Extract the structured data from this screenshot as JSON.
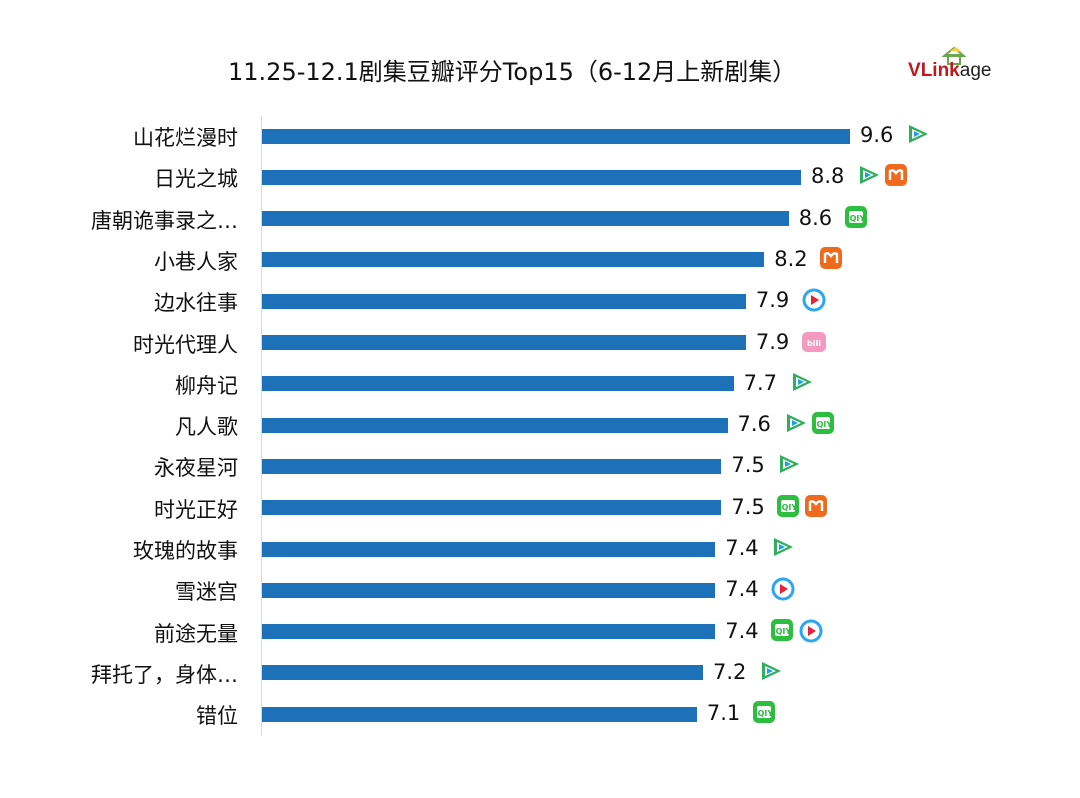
{
  "title": "11.25-12.1剧集豆瓣评分Top15（6-12月上新剧集）",
  "logo": {
    "text_v": "V",
    "text_link": "Link",
    "text_age": "age"
  },
  "platform_colors": {
    "tencent-video": "#2fae5b",
    "mango-tv": "#f06a1d",
    "iqiyi": "#2cbf3f",
    "youku": "#2aa6f2",
    "bilibili": "#f49ac1"
  },
  "chart_data": {
    "type": "bar",
    "orientation": "horizontal",
    "title": "11.25-12.1剧集豆瓣评分Top15（6-12月上新剧集）",
    "xlabel": "",
    "ylabel": "",
    "xlim": [
      0,
      10
    ],
    "categories": [
      "山花烂漫时",
      "日光之城",
      "唐朝诡事录之…",
      "小巷人家",
      "边水往事",
      "时光代理人",
      "柳舟记",
      "凡人歌",
      "永夜星河",
      "时光正好",
      "玫瑰的故事",
      "雪迷宫",
      "前途无量",
      "拜托了，身体…",
      "错位"
    ],
    "values": [
      9.6,
      8.8,
      8.6,
      8.2,
      7.9,
      7.9,
      7.7,
      7.6,
      7.5,
      7.5,
      7.4,
      7.4,
      7.4,
      7.2,
      7.1
    ],
    "value_labels": [
      "9.6",
      "8.8",
      "8.6",
      "8.2",
      "7.9",
      "7.9",
      "7.7",
      "7.6",
      "7.5",
      "7.5",
      "7.4",
      "7.4",
      "7.4",
      "7.2",
      "7.1"
    ],
    "platforms": [
      [
        "tencent-video"
      ],
      [
        "tencent-video",
        "mango-tv"
      ],
      [
        "iqiyi"
      ],
      [
        "mango-tv"
      ],
      [
        "youku"
      ],
      [
        "bilibili"
      ],
      [
        "tencent-video"
      ],
      [
        "tencent-video",
        "iqiyi"
      ],
      [
        "tencent-video"
      ],
      [
        "iqiyi",
        "mango-tv"
      ],
      [
        "tencent-video"
      ],
      [
        "youku"
      ],
      [
        "iqiyi",
        "youku"
      ],
      [
        "tencent-video"
      ],
      [
        "iqiyi"
      ]
    ],
    "bar_color": "#1d71b8",
    "legend": "none",
    "grid": false
  }
}
